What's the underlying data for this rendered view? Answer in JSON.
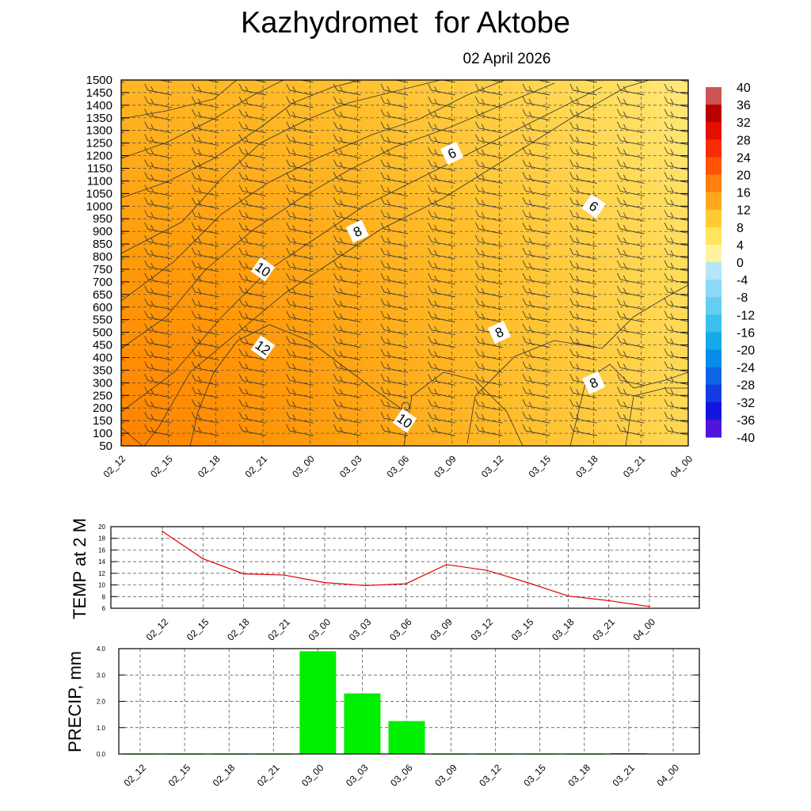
{
  "header": {
    "title": "Kazhydromet  for Aktobe",
    "date": "02 April 2026"
  },
  "colors": {
    "warm_low": "#ffe97e",
    "warm_high": "#ff8a00",
    "temp_line": "#e00000",
    "precip_bar": "#00ee00"
  },
  "time_labels": [
    "02_12",
    "02_15",
    "02_18",
    "02_21",
    "03_00",
    "03_03",
    "03_06",
    "03_09",
    "03_12",
    "03_15",
    "03_18",
    "03_21",
    "04_00"
  ],
  "chart_data": [
    {
      "type": "heatmap",
      "name": "cross-section",
      "y_ticks": [
        50,
        100,
        150,
        200,
        250,
        300,
        350,
        400,
        450,
        500,
        550,
        600,
        650,
        700,
        750,
        800,
        850,
        900,
        950,
        1000,
        1050,
        1100,
        1150,
        1200,
        1250,
        1300,
        1350,
        1400,
        1450,
        1500
      ],
      "ylim": [
        50,
        1500
      ],
      "colorbar_ticks": [
        40,
        36,
        32,
        28,
        24,
        20,
        16,
        12,
        8,
        4,
        0,
        -4,
        -8,
        -12,
        -16,
        -20,
        -24,
        -28,
        -32,
        -36,
        -40
      ],
      "contour_labels": [
        {
          "text": "6",
          "time": "03_09",
          "height": 1210
        },
        {
          "text": "6",
          "time": "03_18",
          "height": 1000
        },
        {
          "text": "8",
          "time": "03_03",
          "height": 900
        },
        {
          "text": "10",
          "time": "02_21",
          "height": 750
        },
        {
          "text": "8",
          "time": "03_12",
          "height": 500
        },
        {
          "text": "12",
          "time": "02_21",
          "height": 440
        },
        {
          "text": "8",
          "time": "03_18",
          "height": 300
        },
        {
          "text": "10",
          "time": "03_06",
          "height": 150
        }
      ],
      "grid": true
    },
    {
      "type": "line",
      "ylabel": "TEMP at 2 M",
      "y_ticks": [
        6,
        8,
        10,
        12,
        14,
        16,
        18,
        20
      ],
      "ylim": [
        6,
        20
      ],
      "x": [
        "02_12",
        "02_15",
        "02_18",
        "02_21",
        "03_00",
        "03_03",
        "03_06",
        "03_09",
        "03_12",
        "03_15",
        "03_18",
        "03_21",
        "04_00"
      ],
      "values": [
        19.2,
        14.5,
        11.9,
        11.7,
        10.4,
        9.9,
        10.2,
        13.5,
        12.5,
        10.4,
        8.1,
        7.3,
        6.3
      ],
      "grid": true
    },
    {
      "type": "bar",
      "ylabel": "PRECIP, mm",
      "y_ticks": [
        "0.0",
        "1.0",
        "2.0",
        "3.0",
        "4.0"
      ],
      "ylim": [
        0,
        4
      ],
      "categories": [
        "02_12",
        "02_15",
        "02_18",
        "02_21",
        "03_00",
        "03_03",
        "03_06",
        "03_09",
        "03_12",
        "03_15",
        "03_18",
        "03_21",
        "04_00"
      ],
      "values": [
        0,
        0,
        0,
        0,
        3.9,
        2.3,
        1.25,
        0,
        0,
        0,
        0,
        0.03,
        0.01
      ],
      "grid": true
    }
  ]
}
